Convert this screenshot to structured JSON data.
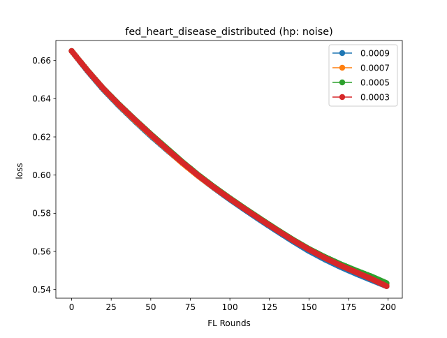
{
  "chart_data": {
    "type": "line",
    "title": "fed_heart_disease_distributed (hp: noise)",
    "xlabel": "FL Rounds",
    "ylabel": "loss",
    "xlim": [
      -9.95,
      208.95
    ],
    "ylim": [
      0.5355,
      0.6705
    ],
    "xticks": [
      0,
      25,
      50,
      75,
      100,
      125,
      150,
      175,
      200
    ],
    "xtick_labels": [
      "0",
      "25",
      "50",
      "75",
      "100",
      "125",
      "150",
      "175",
      "200"
    ],
    "yticks": [
      0.54,
      0.56,
      0.58,
      0.6,
      0.62,
      0.64,
      0.66
    ],
    "ytick_labels": [
      "0.54",
      "0.56",
      "0.58",
      "0.60",
      "0.62",
      "0.64",
      "0.66"
    ],
    "grid": false,
    "legend_position": "upper right",
    "marker": "circle",
    "x": [
      0,
      10,
      20,
      30,
      40,
      50,
      60,
      70,
      80,
      90,
      100,
      110,
      120,
      130,
      140,
      150,
      160,
      170,
      180,
      190,
      199
    ],
    "series": [
      {
        "name": "0.0009",
        "color": "#1f77b4",
        "values": [
          0.665,
          0.6545,
          0.6448,
          0.6362,
          0.6282,
          0.6205,
          0.6133,
          0.6063,
          0.5995,
          0.5932,
          0.5872,
          0.5815,
          0.5759,
          0.5705,
          0.5652,
          0.5602,
          0.5558,
          0.5518,
          0.5482,
          0.5448,
          0.5418
        ]
      },
      {
        "name": "0.0007",
        "color": "#ff7f0e",
        "values": [
          0.665,
          0.6548,
          0.6452,
          0.6366,
          0.6286,
          0.621,
          0.6136,
          0.6062,
          0.5995,
          0.5934,
          0.5876,
          0.582,
          0.5765,
          0.5712,
          0.566,
          0.5612,
          0.557,
          0.5531,
          0.5496,
          0.5462,
          0.5428
        ]
      },
      {
        "name": "0.0005",
        "color": "#2ca02c",
        "values": [
          0.665,
          0.6549,
          0.6454,
          0.637,
          0.6291,
          0.6215,
          0.6142,
          0.6069,
          0.6001,
          0.5938,
          0.5879,
          0.5822,
          0.5767,
          0.5713,
          0.5661,
          0.5613,
          0.5571,
          0.5533,
          0.5499,
          0.5467,
          0.5434
        ]
      },
      {
        "name": "0.0003",
        "color": "#d62728",
        "values": [
          0.665,
          0.6548,
          0.6453,
          0.6368,
          0.6289,
          0.6212,
          0.6138,
          0.6066,
          0.5998,
          0.5935,
          0.5876,
          0.5819,
          0.5764,
          0.571,
          0.5658,
          0.561,
          0.5566,
          0.5526,
          0.549,
          0.5454,
          0.5418
        ]
      }
    ]
  }
}
